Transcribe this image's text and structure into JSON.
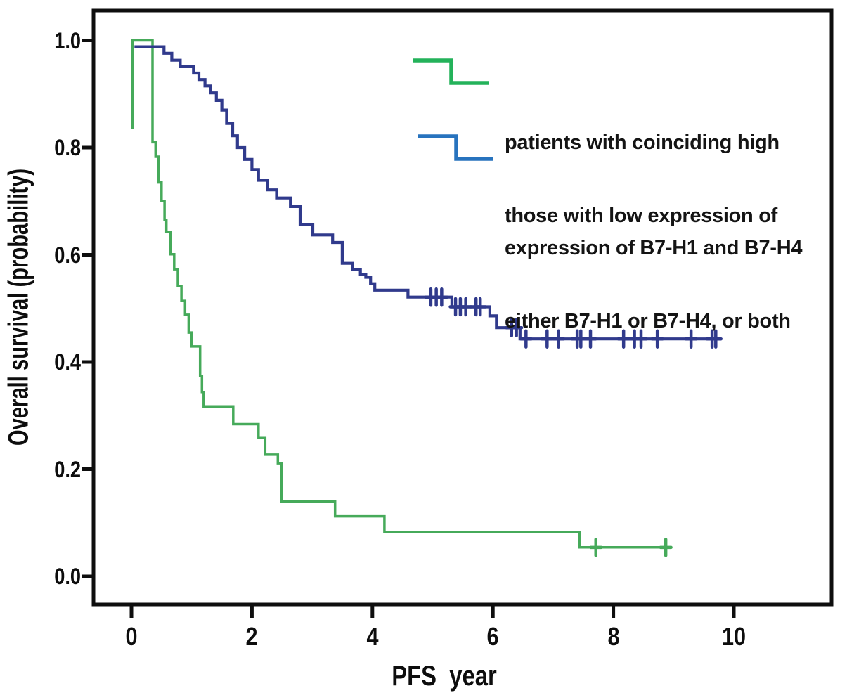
{
  "figure": {
    "background": "#ffffff",
    "frame_color": "#0e0e0e"
  },
  "chart_data": {
    "type": "line",
    "subtype": "kaplan-meier-step",
    "title": "",
    "xlabel": "PFS  year",
    "ylabel": "Overall survival (probability)",
    "xlim": [
      -0.6,
      11.6
    ],
    "ylim": [
      0.0,
      1.05
    ],
    "x_ticks": [
      "0",
      "2",
      "4",
      "6",
      "8",
      "10"
    ],
    "y_ticks": [
      "0.0",
      "0.2",
      "0.4",
      "0.6",
      "0.8",
      "1.0"
    ],
    "grid": false,
    "legend_position": "upper-right-inside",
    "series": [
      {
        "name": "high-coexpression-group",
        "label_line1": "patients with coinciding high",
        "label_line2": "expression of B7-H1 and B7-H4",
        "color": "#46aa5a",
        "legend_color": "#23b25a",
        "steps": [
          [
            0.0,
            1.0
          ],
          [
            0.35,
            0.81
          ],
          [
            0.4,
            0.783
          ],
          [
            0.45,
            0.735
          ],
          [
            0.5,
            0.7
          ],
          [
            0.55,
            0.665
          ],
          [
            0.58,
            0.643
          ],
          [
            0.65,
            0.601
          ],
          [
            0.71,
            0.573
          ],
          [
            0.77,
            0.542
          ],
          [
            0.83,
            0.514
          ],
          [
            0.89,
            0.488
          ],
          [
            0.95,
            0.455
          ],
          [
            1.0,
            0.429
          ],
          [
            1.14,
            0.374
          ],
          [
            1.17,
            0.344
          ],
          [
            1.2,
            0.317
          ],
          [
            1.69,
            0.284
          ],
          [
            2.11,
            0.258
          ],
          [
            2.22,
            0.227
          ],
          [
            2.43,
            0.211
          ],
          [
            2.49,
            0.14
          ],
          [
            3.38,
            0.112
          ],
          [
            4.2,
            0.083
          ],
          [
            7.44,
            0.054
          ]
        ],
        "end_time": 8.87,
        "censored": [
          [
            7.71,
            0.054
          ],
          [
            8.87,
            0.054
          ]
        ],
        "onset_drop": {
          "time": 0.02,
          "from": 1.0,
          "to": 0.835
        }
      },
      {
        "name": "low-expression-group",
        "label_line1": "those with low expression of",
        "label_line2": "either B7-H1 or B7-H4, or both",
        "color": "#303a8c",
        "legend_color": "#2873be",
        "steps": [
          [
            0.05,
            0.988
          ],
          [
            0.54,
            0.976
          ],
          [
            0.67,
            0.963
          ],
          [
            0.81,
            0.951
          ],
          [
            1.03,
            0.939
          ],
          [
            1.12,
            0.927
          ],
          [
            1.22,
            0.915
          ],
          [
            1.31,
            0.902
          ],
          [
            1.41,
            0.888
          ],
          [
            1.5,
            0.87
          ],
          [
            1.58,
            0.845
          ],
          [
            1.68,
            0.822
          ],
          [
            1.76,
            0.8
          ],
          [
            1.88,
            0.778
          ],
          [
            2.0,
            0.759
          ],
          [
            2.11,
            0.739
          ],
          [
            2.26,
            0.721
          ],
          [
            2.41,
            0.706
          ],
          [
            2.64,
            0.69
          ],
          [
            2.8,
            0.656
          ],
          [
            3.01,
            0.637
          ],
          [
            3.34,
            0.623
          ],
          [
            3.5,
            0.584
          ],
          [
            3.67,
            0.572
          ],
          [
            3.8,
            0.563
          ],
          [
            3.89,
            0.558
          ],
          [
            3.97,
            0.546
          ],
          [
            4.04,
            0.534
          ],
          [
            4.59,
            0.521
          ],
          [
            5.32,
            0.503
          ],
          [
            5.95,
            0.486
          ],
          [
            6.06,
            0.464
          ],
          [
            6.45,
            0.443
          ]
        ],
        "end_time": 9.78,
        "censored": [
          [
            4.97,
            0.521
          ],
          [
            5.06,
            0.521
          ],
          [
            5.15,
            0.521
          ],
          [
            5.38,
            0.503
          ],
          [
            5.46,
            0.503
          ],
          [
            5.55,
            0.503
          ],
          [
            5.72,
            0.503
          ],
          [
            5.79,
            0.503
          ],
          [
            6.31,
            0.464
          ],
          [
            6.39,
            0.464
          ],
          [
            6.55,
            0.443
          ],
          [
            6.9,
            0.443
          ],
          [
            7.09,
            0.443
          ],
          [
            7.4,
            0.443
          ],
          [
            7.46,
            0.443
          ],
          [
            7.62,
            0.443
          ],
          [
            8.17,
            0.443
          ],
          [
            8.35,
            0.443
          ],
          [
            8.46,
            0.443
          ],
          [
            8.73,
            0.443
          ],
          [
            9.29,
            0.443
          ],
          [
            9.64,
            0.443
          ],
          [
            9.7,
            0.443
          ]
        ]
      }
    ]
  }
}
